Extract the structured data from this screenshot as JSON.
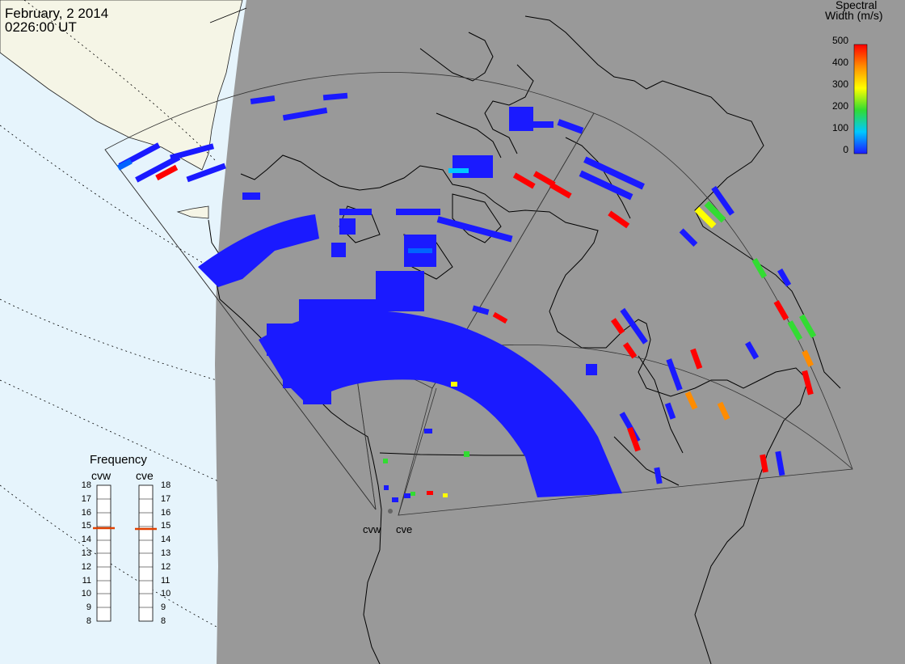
{
  "header": {
    "date": "February, 2 2014",
    "time": "0226:00 UT"
  },
  "colorbar": {
    "title_line1": "Spectral",
    "title_line2": "Width (m/s)",
    "ticks": [
      "500",
      "400",
      "300",
      "200",
      "100",
      "0"
    ],
    "range": [
      0,
      500
    ],
    "colors": [
      "#1a1aff",
      "#00c8ff",
      "#32dc32",
      "#ffff00",
      "#ff8c00",
      "#ff0000"
    ]
  },
  "frequency_panel": {
    "title": "Frequency",
    "radars": [
      {
        "name": "cvw",
        "value_mhz": 15
      },
      {
        "name": "cve",
        "value_mhz": 15
      }
    ],
    "ticks": [
      "18",
      "17",
      "16",
      "15",
      "14",
      "13",
      "12",
      "11",
      "10",
      "9",
      "8"
    ],
    "indicator_color": "#e04000"
  },
  "radars": [
    {
      "name": "cvw"
    },
    {
      "name": "cve"
    }
  ],
  "map": {
    "night_color": "#999999",
    "ocean_color": "#e6f4fc",
    "land_color": "#f5f5e6",
    "coastline_color": "#000000"
  }
}
